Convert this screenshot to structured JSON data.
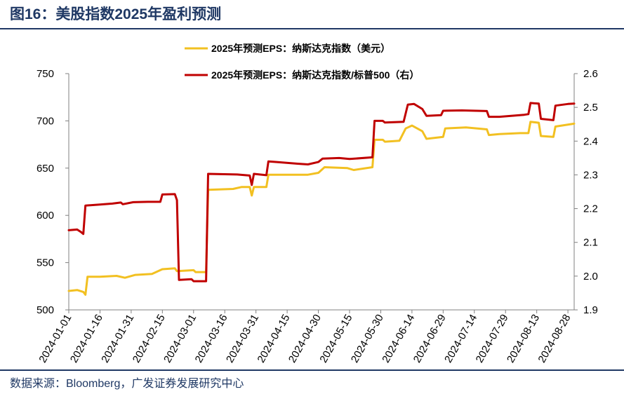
{
  "title": "图16：美股指数2025年盈利预测",
  "source": "数据来源：Bloomberg，广发证券发展研究中心",
  "chart_data": {
    "type": "line",
    "x": [
      "2024-01-01",
      "2024-01-16",
      "2024-01-31",
      "2024-02-15",
      "2024-03-01",
      "2024-03-16",
      "2024-03-31",
      "2024-04-15",
      "2024-04-30",
      "2024-05-15",
      "2024-05-30",
      "2024-06-14",
      "2024-06-29",
      "2024-07-14",
      "2024-07-29",
      "2024-08-13",
      "2024-08-28"
    ],
    "y_left": {
      "min": 500,
      "max": 750,
      "ticks": [
        500,
        550,
        600,
        650,
        700,
        750
      ]
    },
    "y_right": {
      "min": 1.9,
      "max": 2.6,
      "ticks": [
        "1.9",
        "2.0",
        "2.1",
        "2.2",
        "2.3",
        "2.4",
        "2.5",
        "2.6"
      ]
    },
    "series": [
      {
        "name": "2025年预测EPS：纳斯达克指数（美元）",
        "axis": "left",
        "color": "#f2c021",
        "points": [
          [
            "2024-01-01",
            520
          ],
          [
            "2024-01-05",
            521
          ],
          [
            "2024-01-08",
            519
          ],
          [
            "2024-01-09",
            516
          ],
          [
            "2024-01-10",
            535
          ],
          [
            "2024-01-16",
            535
          ],
          [
            "2024-01-24",
            536
          ],
          [
            "2024-01-28",
            534
          ],
          [
            "2024-02-02",
            537
          ],
          [
            "2024-02-10",
            538
          ],
          [
            "2024-02-15",
            543
          ],
          [
            "2024-02-21",
            544
          ],
          [
            "2024-02-22",
            541
          ],
          [
            "2024-03-01",
            542
          ],
          [
            "2024-03-02",
            540
          ],
          [
            "2024-03-07",
            540
          ],
          [
            "2024-03-08",
            627
          ],
          [
            "2024-03-20",
            628
          ],
          [
            "2024-03-24",
            630
          ],
          [
            "2024-03-28",
            630
          ],
          [
            "2024-03-29",
            621
          ],
          [
            "2024-03-30",
            630
          ],
          [
            "2024-04-05",
            630
          ],
          [
            "2024-04-06",
            643
          ],
          [
            "2024-04-15",
            643
          ],
          [
            "2024-04-25",
            643
          ],
          [
            "2024-04-30",
            645
          ],
          [
            "2024-05-03",
            651
          ],
          [
            "2024-05-14",
            650
          ],
          [
            "2024-05-17",
            648
          ],
          [
            "2024-05-26",
            651
          ],
          [
            "2024-05-27",
            680
          ],
          [
            "2024-05-31",
            680
          ],
          [
            "2024-06-01",
            678
          ],
          [
            "2024-06-08",
            679
          ],
          [
            "2024-06-11",
            692
          ],
          [
            "2024-06-14",
            695
          ],
          [
            "2024-06-19",
            689
          ],
          [
            "2024-06-21",
            681
          ],
          [
            "2024-06-29",
            683
          ],
          [
            "2024-06-30",
            692
          ],
          [
            "2024-07-10",
            693
          ],
          [
            "2024-07-20",
            691
          ],
          [
            "2024-07-21",
            685
          ],
          [
            "2024-07-26",
            686
          ],
          [
            "2024-08-05",
            687
          ],
          [
            "2024-08-09",
            687
          ],
          [
            "2024-08-10",
            699
          ],
          [
            "2024-08-14",
            698
          ],
          [
            "2024-08-15",
            684
          ],
          [
            "2024-08-21",
            683
          ],
          [
            "2024-08-22",
            694
          ],
          [
            "2024-08-31",
            697
          ]
        ]
      },
      {
        "name": "2025年预测EPS：纳斯达克指数/标普500（右）",
        "axis": "right",
        "color": "#c00000",
        "points": [
          [
            "2024-01-01",
            2.136
          ],
          [
            "2024-01-05",
            2.138
          ],
          [
            "2024-01-07",
            2.13
          ],
          [
            "2024-01-08",
            2.125
          ],
          [
            "2024-01-09",
            2.209
          ],
          [
            "2024-01-16",
            2.212
          ],
          [
            "2024-01-22",
            2.215
          ],
          [
            "2024-01-26",
            2.218
          ],
          [
            "2024-01-27",
            2.213
          ],
          [
            "2024-02-01",
            2.219
          ],
          [
            "2024-02-08",
            2.22
          ],
          [
            "2024-02-14",
            2.22
          ],
          [
            "2024-02-15",
            2.242
          ],
          [
            "2024-02-21",
            2.243
          ],
          [
            "2024-02-22",
            2.225
          ],
          [
            "2024-02-23",
            1.989
          ],
          [
            "2024-02-29",
            1.991
          ],
          [
            "2024-03-01",
            1.985
          ],
          [
            "2024-03-07",
            1.985
          ],
          [
            "2024-03-08",
            2.303
          ],
          [
            "2024-03-16",
            2.302
          ],
          [
            "2024-03-22",
            2.301
          ],
          [
            "2024-03-28",
            2.298
          ],
          [
            "2024-03-29",
            2.27
          ],
          [
            "2024-03-30",
            2.303
          ],
          [
            "2024-04-05",
            2.299
          ],
          [
            "2024-04-06",
            2.34
          ],
          [
            "2024-04-10",
            2.338
          ],
          [
            "2024-04-20",
            2.333
          ],
          [
            "2024-04-25",
            2.331
          ],
          [
            "2024-04-30",
            2.338
          ],
          [
            "2024-05-02",
            2.348
          ],
          [
            "2024-05-10",
            2.35
          ],
          [
            "2024-05-15",
            2.347
          ],
          [
            "2024-05-26",
            2.352
          ],
          [
            "2024-05-27",
            2.46
          ],
          [
            "2024-05-31",
            2.46
          ],
          [
            "2024-06-01",
            2.455
          ],
          [
            "2024-06-10",
            2.457
          ],
          [
            "2024-06-12",
            2.508
          ],
          [
            "2024-06-15",
            2.51
          ],
          [
            "2024-06-19",
            2.495
          ],
          [
            "2024-06-21",
            2.475
          ],
          [
            "2024-06-28",
            2.477
          ],
          [
            "2024-06-29",
            2.49
          ],
          [
            "2024-07-08",
            2.491
          ],
          [
            "2024-07-20",
            2.489
          ],
          [
            "2024-07-21",
            2.472
          ],
          [
            "2024-07-26",
            2.472
          ],
          [
            "2024-08-07",
            2.478
          ],
          [
            "2024-08-09",
            2.48
          ],
          [
            "2024-08-10",
            2.513
          ],
          [
            "2024-08-14",
            2.511
          ],
          [
            "2024-08-15",
            2.466
          ],
          [
            "2024-08-21",
            2.462
          ],
          [
            "2024-08-22",
            2.505
          ],
          [
            "2024-08-28",
            2.51
          ],
          [
            "2024-08-31",
            2.511
          ]
        ]
      }
    ]
  }
}
